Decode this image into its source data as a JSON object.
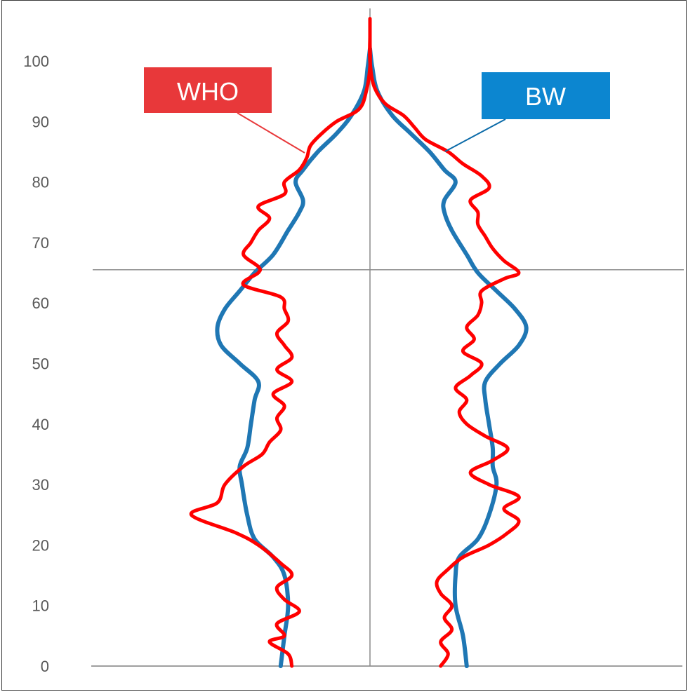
{
  "chart_data": {
    "type": "line",
    "title": "",
    "xlabel": "",
    "ylabel": "",
    "ylim": [
      0,
      106
    ],
    "y_ticks": [
      "0",
      "10",
      "20",
      "30",
      "40",
      "50",
      "60",
      "70",
      "80",
      "90",
      "100"
    ],
    "reference_line_y": 65.5,
    "grid": false,
    "annotations": [
      {
        "text": "WHO",
        "color": "#e8383a",
        "series": "WHO"
      },
      {
        "text": "BW",
        "color": "#0c86d0",
        "series": "BW"
      }
    ],
    "series": [
      {
        "name": "BW",
        "color": "#1f77b4",
        "left": [
          [
            0,
            -1.2
          ],
          [
            5,
            -1.15
          ],
          [
            10,
            -1.1
          ],
          [
            15,
            -1.15
          ],
          [
            18,
            -1.3
          ],
          [
            21,
            -1.55
          ],
          [
            25,
            -1.65
          ],
          [
            30,
            -1.72
          ],
          [
            33,
            -1.75
          ],
          [
            36,
            -1.65
          ],
          [
            40,
            -1.6
          ],
          [
            44,
            -1.55
          ],
          [
            47,
            -1.5
          ],
          [
            50,
            -1.75
          ],
          [
            53,
            -2.0
          ],
          [
            56,
            -2.05
          ],
          [
            59,
            -1.95
          ],
          [
            62,
            -1.75
          ],
          [
            65,
            -1.55
          ],
          [
            68,
            -1.3
          ],
          [
            72,
            -1.1
          ],
          [
            75,
            -0.95
          ],
          [
            77,
            -0.9
          ],
          [
            80,
            -1.0
          ],
          [
            82,
            -0.9
          ],
          [
            85,
            -0.7
          ],
          [
            88,
            -0.45
          ],
          [
            91,
            -0.25
          ],
          [
            95,
            -0.08
          ],
          [
            99,
            -0.03
          ],
          [
            102,
            0
          ]
        ],
        "right": [
          [
            0,
            1.3
          ],
          [
            5,
            1.25
          ],
          [
            10,
            1.15
          ],
          [
            15,
            1.15
          ],
          [
            18,
            1.2
          ],
          [
            21,
            1.45
          ],
          [
            25,
            1.6
          ],
          [
            30,
            1.7
          ],
          [
            33,
            1.65
          ],
          [
            36,
            1.65
          ],
          [
            40,
            1.6
          ],
          [
            44,
            1.55
          ],
          [
            47,
            1.55
          ],
          [
            50,
            1.75
          ],
          [
            53,
            2.0
          ],
          [
            56,
            2.1
          ],
          [
            59,
            1.95
          ],
          [
            62,
            1.7
          ],
          [
            65,
            1.45
          ],
          [
            68,
            1.3
          ],
          [
            72,
            1.1
          ],
          [
            75,
            1.0
          ],
          [
            77,
            1.0
          ],
          [
            80,
            1.15
          ],
          [
            82,
            1.0
          ],
          [
            85,
            0.8
          ],
          [
            88,
            0.55
          ],
          [
            91,
            0.3
          ],
          [
            95,
            0.1
          ],
          [
            99,
            0.03
          ],
          [
            102,
            0
          ]
        ]
      },
      {
        "name": "WHO",
        "color": "#ff0000",
        "left": [
          [
            0,
            -1.05
          ],
          [
            2,
            -1.1
          ],
          [
            4,
            -1.35
          ],
          [
            5,
            -1.15
          ],
          [
            7,
            -1.25
          ],
          [
            9,
            -0.95
          ],
          [
            11,
            -1.15
          ],
          [
            13,
            -1.25
          ],
          [
            15,
            -1.05
          ],
          [
            17,
            -1.2
          ],
          [
            20,
            -1.5
          ],
          [
            22,
            -1.8
          ],
          [
            25,
            -2.4
          ],
          [
            27,
            -2.05
          ],
          [
            30,
            -1.95
          ],
          [
            33,
            -1.7
          ],
          [
            35,
            -1.45
          ],
          [
            37,
            -1.35
          ],
          [
            39,
            -1.2
          ],
          [
            41,
            -1.25
          ],
          [
            43,
            -1.15
          ],
          [
            45,
            -1.3
          ],
          [
            47,
            -1.05
          ],
          [
            49,
            -1.25
          ],
          [
            51,
            -1.05
          ],
          [
            53,
            -1.15
          ],
          [
            55,
            -1.25
          ],
          [
            57,
            -1.1
          ],
          [
            59,
            -1.15
          ],
          [
            61,
            -1.2
          ],
          [
            63,
            -1.7
          ],
          [
            65,
            -1.5
          ],
          [
            66,
            -1.5
          ],
          [
            68,
            -1.7
          ],
          [
            70,
            -1.6
          ],
          [
            72,
            -1.5
          ],
          [
            74,
            -1.35
          ],
          [
            76,
            -1.5
          ],
          [
            78,
            -1.15
          ],
          [
            80,
            -1.15
          ],
          [
            82,
            -0.95
          ],
          [
            84,
            -0.85
          ],
          [
            86,
            -0.8
          ],
          [
            88,
            -0.65
          ],
          [
            90,
            -0.45
          ],
          [
            92,
            -0.15
          ],
          [
            95,
            -0.05
          ],
          [
            99,
            0
          ],
          [
            103,
            0
          ],
          [
            107,
            0
          ]
        ],
        "right": [
          [
            0,
            0.95
          ],
          [
            2,
            1.05
          ],
          [
            4,
            0.95
          ],
          [
            6,
            1.1
          ],
          [
            8,
            1.0
          ],
          [
            10,
            1.1
          ],
          [
            12,
            0.95
          ],
          [
            14,
            0.9
          ],
          [
            16,
            1.05
          ],
          [
            18,
            1.25
          ],
          [
            20,
            1.6
          ],
          [
            22,
            1.85
          ],
          [
            24,
            2.0
          ],
          [
            26,
            1.8
          ],
          [
            28,
            2.0
          ],
          [
            30,
            1.6
          ],
          [
            32,
            1.35
          ],
          [
            34,
            1.65
          ],
          [
            36,
            1.85
          ],
          [
            38,
            1.55
          ],
          [
            40,
            1.3
          ],
          [
            42,
            1.2
          ],
          [
            44,
            1.3
          ],
          [
            46,
            1.15
          ],
          [
            48,
            1.35
          ],
          [
            50,
            1.5
          ],
          [
            52,
            1.25
          ],
          [
            54,
            1.4
          ],
          [
            56,
            1.3
          ],
          [
            58,
            1.45
          ],
          [
            60,
            1.5
          ],
          [
            62,
            1.5
          ],
          [
            64,
            1.8
          ],
          [
            65,
            2.0
          ],
          [
            67,
            1.8
          ],
          [
            69,
            1.65
          ],
          [
            71,
            1.55
          ],
          [
            73,
            1.45
          ],
          [
            75,
            1.45
          ],
          [
            77,
            1.35
          ],
          [
            79,
            1.6
          ],
          [
            81,
            1.5
          ],
          [
            83,
            1.25
          ],
          [
            85,
            1.05
          ],
          [
            87,
            0.75
          ],
          [
            89,
            0.6
          ],
          [
            91,
            0.45
          ],
          [
            93,
            0.2
          ],
          [
            96,
            0.05
          ],
          [
            100,
            0
          ],
          [
            104,
            0
          ]
        ]
      }
    ]
  }
}
